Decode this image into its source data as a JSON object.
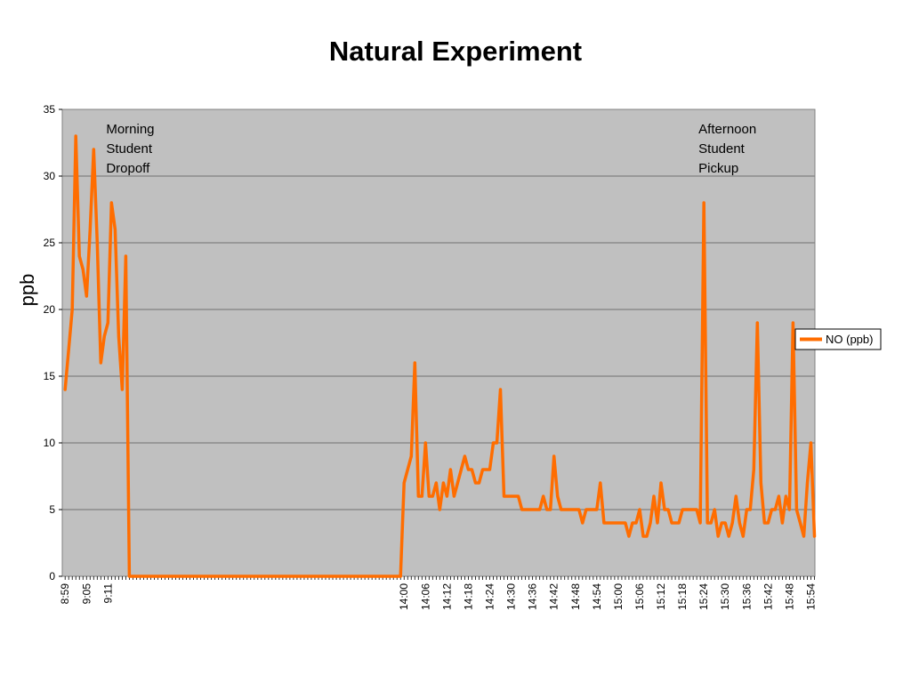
{
  "chart_data": {
    "type": "line",
    "title": "Natural Experiment",
    "xlabel": "",
    "ylabel": "ppb",
    "ylim": [
      0,
      35
    ],
    "yticks": [
      0,
      5,
      10,
      15,
      20,
      25,
      30,
      35
    ],
    "grid": true,
    "legend_position": "right",
    "xtick_labels": [
      {
        "slot": 0,
        "label": "8:59"
      },
      {
        "slot": 6,
        "label": "9:05"
      },
      {
        "slot": 12,
        "label": "9:11"
      },
      {
        "slot": 95,
        "label": "14:00"
      },
      {
        "slot": 101,
        "label": "14:06"
      },
      {
        "slot": 107,
        "label": "14:12"
      },
      {
        "slot": 113,
        "label": "14:18"
      },
      {
        "slot": 119,
        "label": "14:24"
      },
      {
        "slot": 125,
        "label": "14:30"
      },
      {
        "slot": 131,
        "label": "14:36"
      },
      {
        "slot": 137,
        "label": "14:42"
      },
      {
        "slot": 143,
        "label": "14:48"
      },
      {
        "slot": 149,
        "label": "14:54"
      },
      {
        "slot": 155,
        "label": "15:00"
      },
      {
        "slot": 161,
        "label": "15:06"
      },
      {
        "slot": 167,
        "label": "15:12"
      },
      {
        "slot": 173,
        "label": "15:18"
      },
      {
        "slot": 179,
        "label": "15:24"
      },
      {
        "slot": 185,
        "label": "15:30"
      },
      {
        "slot": 191,
        "label": "15:36"
      },
      {
        "slot": 197,
        "label": "15:42"
      },
      {
        "slot": 203,
        "label": "15:48"
      },
      {
        "slot": 209,
        "label": "15:54"
      }
    ],
    "series": [
      {
        "name": "NO (ppb)",
        "color": "#ff6d00",
        "points": [
          [
            0,
            14
          ],
          [
            2,
            20
          ],
          [
            3,
            33
          ],
          [
            4,
            24
          ],
          [
            5,
            23
          ],
          [
            6,
            21
          ],
          [
            7,
            26
          ],
          [
            8,
            32
          ],
          [
            9,
            25
          ],
          [
            10,
            16
          ],
          [
            11,
            18
          ],
          [
            12,
            19
          ],
          [
            13,
            28
          ],
          [
            14,
            26
          ],
          [
            15,
            18
          ],
          [
            16,
            14
          ],
          [
            17,
            24
          ],
          [
            18,
            0
          ],
          [
            94,
            0
          ],
          [
            95,
            7
          ],
          [
            97,
            9
          ],
          [
            98,
            16
          ],
          [
            99,
            6
          ],
          [
            100,
            6
          ],
          [
            101,
            10
          ],
          [
            102,
            6
          ],
          [
            103,
            6
          ],
          [
            104,
            7
          ],
          [
            105,
            5
          ],
          [
            106,
            7
          ],
          [
            107,
            6
          ],
          [
            108,
            8
          ],
          [
            109,
            6
          ],
          [
            110,
            7
          ],
          [
            111,
            8
          ],
          [
            112,
            9
          ],
          [
            113,
            8
          ],
          [
            114,
            8
          ],
          [
            115,
            7
          ],
          [
            116,
            7
          ],
          [
            117,
            8
          ],
          [
            118,
            8
          ],
          [
            119,
            8
          ],
          [
            120,
            10
          ],
          [
            121,
            10
          ],
          [
            122,
            14
          ],
          [
            123,
            6
          ],
          [
            127,
            6
          ],
          [
            128,
            5
          ],
          [
            133,
            5
          ],
          [
            134,
            6
          ],
          [
            135,
            5
          ],
          [
            136,
            5
          ],
          [
            137,
            9
          ],
          [
            138,
            6
          ],
          [
            139,
            5
          ],
          [
            144,
            5
          ],
          [
            145,
            4
          ],
          [
            146,
            5
          ],
          [
            149,
            5
          ],
          [
            150,
            7
          ],
          [
            151,
            4
          ],
          [
            157,
            4
          ],
          [
            158,
            3
          ],
          [
            159,
            4
          ],
          [
            160,
            4
          ],
          [
            161,
            5
          ],
          [
            162,
            3
          ],
          [
            163,
            3
          ],
          [
            164,
            4
          ],
          [
            165,
            6
          ],
          [
            166,
            4
          ],
          [
            167,
            7
          ],
          [
            168,
            5
          ],
          [
            169,
            5
          ],
          [
            170,
            4
          ],
          [
            172,
            4
          ],
          [
            173,
            5
          ],
          [
            177,
            5
          ],
          [
            178,
            4
          ],
          [
            179,
            28
          ],
          [
            180,
            4
          ],
          [
            181,
            4
          ],
          [
            182,
            5
          ],
          [
            183,
            3
          ],
          [
            184,
            4
          ],
          [
            185,
            4
          ],
          [
            186,
            3
          ],
          [
            187,
            4
          ],
          [
            188,
            6
          ],
          [
            189,
            4
          ],
          [
            190,
            3
          ],
          [
            191,
            5
          ],
          [
            192,
            5
          ],
          [
            193,
            8
          ],
          [
            194,
            19
          ],
          [
            195,
            7
          ],
          [
            196,
            4
          ],
          [
            197,
            4
          ],
          [
            198,
            5
          ],
          [
            199,
            5
          ],
          [
            200,
            6
          ],
          [
            201,
            4
          ],
          [
            202,
            6
          ],
          [
            203,
            5
          ],
          [
            204,
            19
          ],
          [
            205,
            5
          ],
          [
            206,
            4
          ],
          [
            207,
            3
          ],
          [
            208,
            7
          ],
          [
            209,
            10
          ],
          [
            210,
            3
          ]
        ]
      }
    ],
    "annotations": [
      {
        "lines": [
          "Morning",
          "Student",
          "Dropoff"
        ],
        "slot": 12,
        "y": 33.2
      },
      {
        "lines": [
          "Afternoon",
          "Student",
          "Pickup"
        ],
        "slot": 178,
        "y": 33.2
      }
    ]
  }
}
